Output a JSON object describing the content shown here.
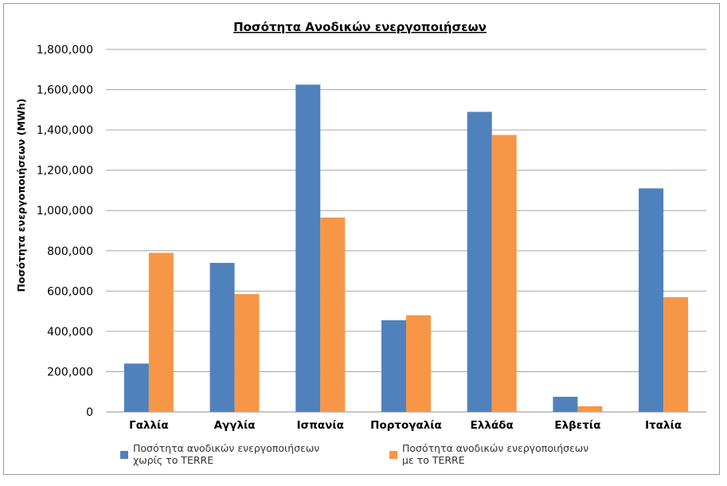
{
  "chart_data": {
    "type": "bar",
    "title": "Ποσότητα Ανοδικών ενεργοποιήσεων",
    "xlabel": "",
    "ylabel": "Ποσότητα ενεργοποιήσεων (MWh)",
    "ylim": [
      0,
      1800000
    ],
    "yticks": [
      0,
      200000,
      400000,
      600000,
      800000,
      1000000,
      1200000,
      1400000,
      1600000,
      1800000
    ],
    "ytick_labels": [
      "0",
      "200,000",
      "400,000",
      "600,000",
      "800,000",
      "1,000,000",
      "1,200,000",
      "1,400,000",
      "1,600,000",
      "1,800,000"
    ],
    "grid": true,
    "legend_position": "bottom",
    "categories": [
      "Γαλλία",
      "Αγγλία",
      "Ισπανία",
      "Πορτογαλία",
      "Ελλάδα",
      "Ελβετία",
      "Ιταλία"
    ],
    "series": [
      {
        "name": "Ποσότητα ανοδικών ενεργοποιήσεων χωρίς το TERRE",
        "legend_lines": [
          "Ποσότητα ανοδικών ενεργοποιήσεων",
          "χωρίς το TERRE"
        ],
        "color": "#4f81bd",
        "values": [
          240000,
          740000,
          1625000,
          455000,
          1490000,
          75000,
          1110000
        ]
      },
      {
        "name": "Ποσότητα ανοδικών ενεργοποιήσεων με το TERRE",
        "legend_lines": [
          "Ποσότητα ανοδικών ενεργοποιήσεων",
          "με το TERRE"
        ],
        "color": "#f79646",
        "values": [
          790000,
          585000,
          965000,
          480000,
          1375000,
          28000,
          570000
        ]
      }
    ],
    "gridline_color": "#a6a6a6"
  }
}
